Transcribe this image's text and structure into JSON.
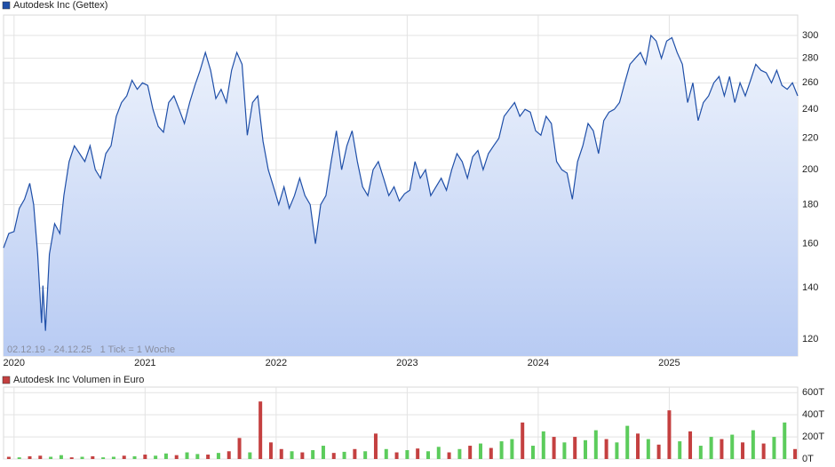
{
  "chart_data": [
    {
      "type": "line",
      "title": "Autodesk Inc (Gettex)",
      "legend_color": "#1f4fa8",
      "info": "02.12.19 - 24.12.25   1 Tick = 1 Woche",
      "log_scale": true,
      "grid": true,
      "color": "#1f4fa8",
      "ylim": [
        114,
        319
      ],
      "yticks": [
        120,
        140,
        160,
        180,
        200,
        220,
        240,
        260,
        280,
        300
      ],
      "xlim": [
        2019.92,
        2025.98
      ],
      "xticks": [
        2020,
        2021,
        2022,
        2023,
        2024,
        2025
      ],
      "x": [
        2019.92,
        2019.96,
        2020.0,
        2020.04,
        2020.08,
        2020.12,
        2020.15,
        2020.18,
        2020.21,
        2020.22,
        2020.24,
        2020.27,
        2020.31,
        2020.35,
        2020.38,
        2020.42,
        2020.46,
        2020.5,
        2020.54,
        2020.58,
        2020.62,
        2020.66,
        2020.7,
        2020.74,
        2020.78,
        2020.82,
        2020.86,
        2020.9,
        2020.94,
        2020.98,
        2021.02,
        2021.06,
        2021.1,
        2021.14,
        2021.18,
        2021.22,
        2021.26,
        2021.3,
        2021.34,
        2021.38,
        2021.42,
        2021.46,
        2021.5,
        2021.54,
        2021.58,
        2021.62,
        2021.66,
        2021.7,
        2021.74,
        2021.78,
        2021.82,
        2021.86,
        2021.9,
        2021.94,
        2021.98,
        2022.02,
        2022.06,
        2022.1,
        2022.14,
        2022.18,
        2022.22,
        2022.26,
        2022.3,
        2022.34,
        2022.38,
        2022.42,
        2022.46,
        2022.5,
        2022.54,
        2022.58,
        2022.62,
        2022.66,
        2022.7,
        2022.74,
        2022.78,
        2022.82,
        2022.86,
        2022.9,
        2022.94,
        2022.98,
        2023.02,
        2023.06,
        2023.1,
        2023.14,
        2023.18,
        2023.22,
        2023.26,
        2023.3,
        2023.34,
        2023.38,
        2023.42,
        2023.46,
        2023.5,
        2023.54,
        2023.58,
        2023.62,
        2023.66,
        2023.7,
        2023.74,
        2023.78,
        2023.82,
        2023.86,
        2023.9,
        2023.94,
        2023.98,
        2024.02,
        2024.06,
        2024.1,
        2024.14,
        2024.18,
        2024.22,
        2024.26,
        2024.3,
        2024.34,
        2024.38,
        2024.42,
        2024.46,
        2024.5,
        2024.54,
        2024.58,
        2024.62,
        2024.66,
        2024.7,
        2024.74,
        2024.78,
        2024.82,
        2024.86,
        2024.9,
        2024.94,
        2024.98,
        2025.02,
        2025.06,
        2025.1,
        2025.14,
        2025.18,
        2025.22,
        2025.26,
        2025.3,
        2025.34,
        2025.38,
        2025.42,
        2025.46,
        2025.5,
        2025.54,
        2025.58,
        2025.62,
        2025.66,
        2025.7,
        2025.74,
        2025.78,
        2025.82,
        2025.86,
        2025.9,
        2025.94,
        2025.98
      ],
      "values": [
        158,
        165,
        166,
        178,
        183,
        192,
        180,
        155,
        126,
        141,
        123,
        155,
        170,
        165,
        185,
        205,
        215,
        210,
        205,
        215,
        200,
        195,
        210,
        215,
        235,
        245,
        250,
        262,
        255,
        260,
        258,
        240,
        228,
        224,
        245,
        250,
        240,
        230,
        245,
        258,
        270,
        285,
        270,
        248,
        255,
        245,
        270,
        285,
        275,
        222,
        245,
        250,
        218,
        200,
        190,
        180,
        190,
        178,
        185,
        195,
        185,
        180,
        160,
        180,
        185,
        205,
        225,
        200,
        215,
        225,
        205,
        190,
        185,
        200,
        205,
        195,
        185,
        190,
        182,
        186,
        188,
        205,
        195,
        200,
        185,
        190,
        195,
        188,
        200,
        210,
        205,
        195,
        208,
        212,
        200,
        210,
        215,
        220,
        235,
        240,
        245,
        235,
        240,
        238,
        225,
        222,
        235,
        230,
        205,
        200,
        198,
        183,
        205,
        215,
        230,
        225,
        210,
        232,
        238,
        240,
        245,
        260,
        275,
        280,
        285,
        275,
        300,
        295,
        280,
        295,
        298,
        285,
        275,
        245,
        260,
        232,
        245,
        250,
        260,
        265,
        250,
        265,
        245,
        260,
        250,
        262,
        275,
        270,
        268,
        260,
        270,
        258,
        255,
        260,
        250
      ]
    },
    {
      "type": "bar",
      "title": "Autodesk Inc Volumen in Euro",
      "legend_color": "#c44040",
      "grid": true,
      "ylim": [
        0,
        650
      ],
      "yticks": [
        {
          "value": 0,
          "label": "0T"
        },
        {
          "value": 200,
          "label": "200T"
        },
        {
          "value": 400,
          "label": "400T"
        },
        {
          "value": 600,
          "label": "600T"
        }
      ],
      "xlim": [
        2019.92,
        2025.98
      ],
      "xticks": [
        2020,
        2021,
        2022,
        2023,
        2024,
        2025
      ],
      "x": [
        2019.96,
        2020.04,
        2020.12,
        2020.2,
        2020.28,
        2020.36,
        2020.44,
        2020.52,
        2020.6,
        2020.68,
        2020.76,
        2020.84,
        2020.92,
        2021.0,
        2021.08,
        2021.16,
        2021.24,
        2021.32,
        2021.4,
        2021.48,
        2021.56,
        2021.64,
        2021.72,
        2021.8,
        2021.88,
        2021.96,
        2022.04,
        2022.12,
        2022.2,
        2022.28,
        2022.36,
        2022.44,
        2022.52,
        2022.6,
        2022.68,
        2022.76,
        2022.84,
        2022.92,
        2023.0,
        2023.08,
        2023.16,
        2023.24,
        2023.32,
        2023.4,
        2023.48,
        2023.56,
        2023.64,
        2023.72,
        2023.8,
        2023.88,
        2023.96,
        2024.04,
        2024.12,
        2024.2,
        2024.28,
        2024.36,
        2024.44,
        2024.52,
        2024.6,
        2024.68,
        2024.76,
        2024.84,
        2024.92,
        2025.0,
        2025.08,
        2025.16,
        2025.24,
        2025.32,
        2025.4,
        2025.48,
        2025.56,
        2025.64,
        2025.72,
        2025.8,
        2025.88,
        2025.96
      ],
      "values": [
        20,
        15,
        25,
        30,
        20,
        35,
        15,
        20,
        25,
        15,
        20,
        30,
        25,
        40,
        30,
        50,
        35,
        60,
        45,
        40,
        55,
        70,
        190,
        60,
        520,
        150,
        90,
        70,
        60,
        80,
        120,
        55,
        65,
        90,
        70,
        230,
        90,
        60,
        80,
        95,
        70,
        110,
        60,
        90,
        120,
        140,
        100,
        160,
        180,
        330,
        120,
        250,
        200,
        150,
        200,
        170,
        260,
        180,
        150,
        300,
        230,
        180,
        130,
        440,
        160,
        250,
        120,
        200,
        180,
        220,
        150,
        260,
        140,
        200,
        330,
        90
      ],
      "colors": [
        "#c44040",
        "#5ccc5c",
        "#c44040",
        "#c44040",
        "#5ccc5c",
        "#5ccc5c",
        "#c44040",
        "#5ccc5c",
        "#c44040",
        "#5ccc5c",
        "#5ccc5c",
        "#c44040",
        "#5ccc5c",
        "#c44040",
        "#5ccc5c",
        "#5ccc5c",
        "#c44040",
        "#5ccc5c",
        "#5ccc5c",
        "#c44040",
        "#5ccc5c",
        "#c44040",
        "#c44040",
        "#5ccc5c",
        "#c44040",
        "#c44040",
        "#c44040",
        "#5ccc5c",
        "#c44040",
        "#5ccc5c",
        "#5ccc5c",
        "#c44040",
        "#5ccc5c",
        "#c44040",
        "#5ccc5c",
        "#c44040",
        "#5ccc5c",
        "#c44040",
        "#5ccc5c",
        "#c44040",
        "#5ccc5c",
        "#5ccc5c",
        "#c44040",
        "#5ccc5c",
        "#c44040",
        "#5ccc5c",
        "#c44040",
        "#5ccc5c",
        "#5ccc5c",
        "#c44040",
        "#5ccc5c",
        "#5ccc5c",
        "#c44040",
        "#5ccc5c",
        "#c44040",
        "#5ccc5c",
        "#5ccc5c",
        "#c44040",
        "#5ccc5c",
        "#5ccc5c",
        "#c44040",
        "#5ccc5c",
        "#c44040",
        "#c44040",
        "#5ccc5c",
        "#c44040",
        "#5ccc5c",
        "#5ccc5c",
        "#c44040",
        "#5ccc5c",
        "#c44040",
        "#5ccc5c",
        "#c44040",
        "#5ccc5c",
        "#5ccc5c",
        "#c44040"
      ]
    }
  ]
}
